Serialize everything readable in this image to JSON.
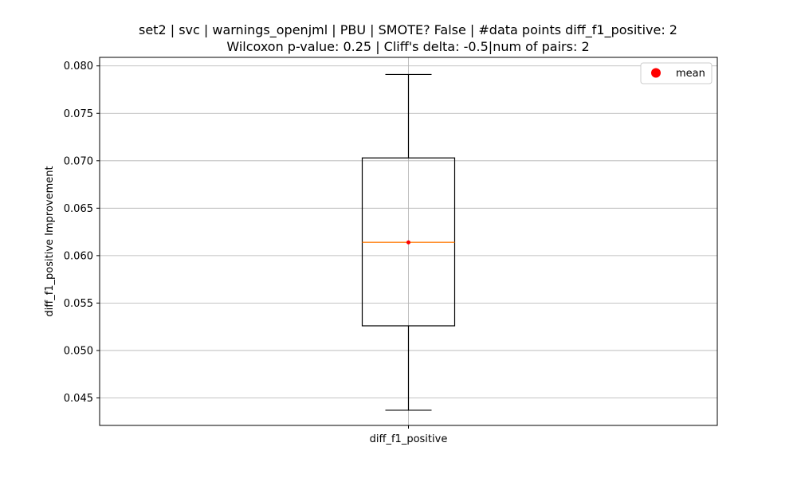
{
  "chart_data": {
    "type": "box",
    "title_line1": "set2 | svc | warnings_openjml | PBU | SMOTE? False | #data points diff_f1_positive: 2",
    "title_line2": "Wilcoxon p-value: 0.25 | Cliff's delta: -0.5|num of pairs: 2",
    "xlabel": "",
    "ylabel": "diff_f1_positive Improvement",
    "categories": [
      "diff_f1_positive"
    ],
    "box": {
      "whisker_low": 0.0437,
      "q1": 0.0526,
      "median": 0.0614,
      "q3": 0.0703,
      "whisker_high": 0.0791,
      "mean": 0.0614
    },
    "ylim": [
      0.0421,
      0.0809
    ],
    "yticks": [
      0.045,
      0.05,
      0.055,
      0.06,
      0.065,
      0.07,
      0.075,
      0.08
    ],
    "ytick_labels": [
      "0.045",
      "0.050",
      "0.055",
      "0.060",
      "0.065",
      "0.070",
      "0.075",
      "0.080"
    ],
    "grid": true,
    "legend": {
      "position": "top-right",
      "entries": [
        "mean"
      ]
    },
    "colors": {
      "median": "#ff7f0e",
      "mean": "#ff0000",
      "box": "#000000",
      "grid": "#b0b0b0"
    }
  }
}
